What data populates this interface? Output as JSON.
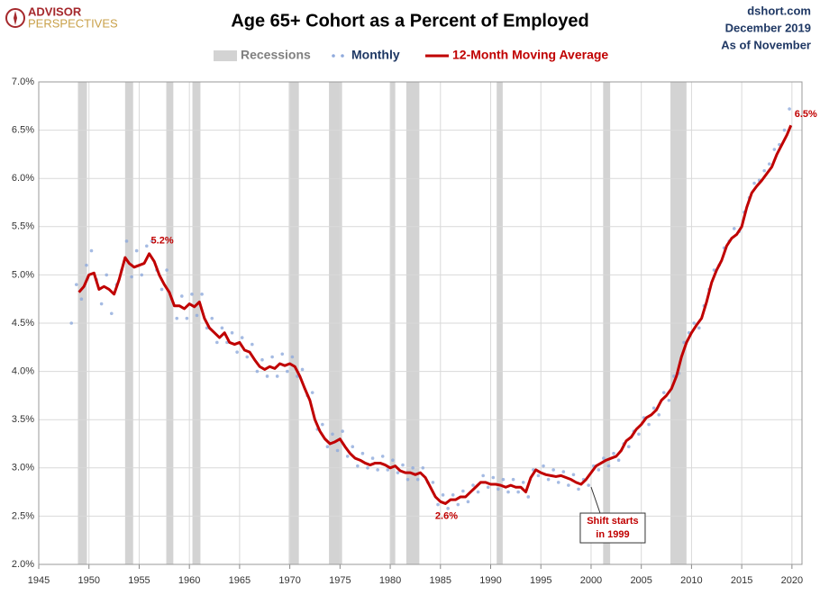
{
  "header": {
    "logo_top": "ADVISOR",
    "logo_bottom": "PERSPECTIVES",
    "source": "dshort.com",
    "date": "December 2019",
    "note": "As of November"
  },
  "chart_data": {
    "type": "line",
    "title": "Age 65+ Cohort as a Percent of Employed",
    "xlim": [
      1945,
      2021
    ],
    "xticks": [
      1945,
      1950,
      1955,
      1960,
      1965,
      1970,
      1975,
      1980,
      1985,
      1990,
      1995,
      2000,
      2005,
      2010,
      2015,
      2020
    ],
    "ylim": [
      2,
      7
    ],
    "yticks": [
      {
        "value": 2,
        "label": "2.0%"
      },
      {
        "value": 2.5,
        "label": "2.5%"
      },
      {
        "value": 3,
        "label": "3.0%"
      },
      {
        "value": 3.5,
        "label": "3.5%"
      },
      {
        "value": 4,
        "label": "4.0%"
      },
      {
        "value": 4.5,
        "label": "4.5%"
      },
      {
        "value": 5,
        "label": "5.0%"
      },
      {
        "value": 5.5,
        "label": "5.5%"
      },
      {
        "value": 6,
        "label": "6.0%"
      },
      {
        "value": 6.5,
        "label": "6.5%"
      },
      {
        "value": 7,
        "label": "7.0%"
      }
    ],
    "grid": true,
    "recessions": {
      "name": "Recessions",
      "color": "#d3d3d3",
      "spans": [
        [
          1948.9,
          1949.8
        ],
        [
          1953.6,
          1954.4
        ],
        [
          1957.7,
          1958.4
        ],
        [
          1960.3,
          1961.1
        ],
        [
          1969.9,
          1970.9
        ],
        [
          1973.9,
          1975.2
        ],
        [
          1980.0,
          1980.5
        ],
        [
          1981.6,
          1982.9
        ],
        [
          1990.6,
          1991.2
        ],
        [
          2001.2,
          2001.9
        ],
        [
          2007.9,
          2009.5
        ]
      ]
    },
    "series": [
      {
        "name": "Monthly",
        "type": "scatter",
        "color": "#8faadc",
        "x": [
          1948.25,
          1948.75,
          1949.25,
          1949.75,
          1950.25,
          1950.75,
          1951.25,
          1951.75,
          1952.25,
          1952.75,
          1953.25,
          1953.75,
          1954.25,
          1954.75,
          1955.25,
          1955.75,
          1956.25,
          1956.75,
          1957.25,
          1957.75,
          1958.25,
          1958.75,
          1959.25,
          1959.75,
          1960.25,
          1960.75,
          1961.25,
          1961.75,
          1962.25,
          1962.75,
          1963.25,
          1963.75,
          1964.25,
          1964.75,
          1965.25,
          1965.75,
          1966.25,
          1966.75,
          1967.25,
          1967.75,
          1968.25,
          1968.75,
          1969.25,
          1969.75,
          1970.25,
          1970.75,
          1971.25,
          1971.75,
          1972.25,
          1972.75,
          1973.25,
          1973.75,
          1974.25,
          1974.75,
          1975.25,
          1975.75,
          1976.25,
          1976.75,
          1977.25,
          1977.75,
          1978.25,
          1978.75,
          1979.25,
          1979.75,
          1980.25,
          1980.75,
          1981.25,
          1981.75,
          1982.25,
          1982.75,
          1983.25,
          1983.75,
          1984.25,
          1984.75,
          1985.25,
          1985.75,
          1986.25,
          1986.75,
          1987.25,
          1987.75,
          1988.25,
          1988.75,
          1989.25,
          1989.75,
          1990.25,
          1990.75,
          1991.25,
          1991.75,
          1992.25,
          1992.75,
          1993.25,
          1993.75,
          1994.25,
          1994.75,
          1995.25,
          1995.75,
          1996.25,
          1996.75,
          1997.25,
          1997.75,
          1998.25,
          1998.75,
          1999.25,
          1999.75,
          2000.25,
          2000.75,
          2001.25,
          2001.75,
          2002.25,
          2002.75,
          2003.25,
          2003.75,
          2004.25,
          2004.75,
          2005.25,
          2005.75,
          2006.25,
          2006.75,
          2007.25,
          2007.75,
          2008.25,
          2008.75,
          2009.25,
          2009.75,
          2010.25,
          2010.75,
          2011.25,
          2011.75,
          2012.25,
          2012.75,
          2013.25,
          2013.75,
          2014.25,
          2014.75,
          2015.25,
          2015.75,
          2016.25,
          2016.75,
          2017.25,
          2017.75,
          2018.25,
          2018.75,
          2019.25,
          2019.75
        ],
        "values": [
          4.5,
          4.9,
          4.75,
          5.1,
          5.25,
          4.95,
          4.7,
          5.0,
          4.6,
          4.9,
          5.05,
          5.35,
          4.98,
          5.25,
          5.0,
          5.3,
          5.35,
          5.05,
          4.85,
          5.05,
          4.75,
          4.55,
          4.78,
          4.55,
          4.8,
          4.58,
          4.8,
          4.45,
          4.55,
          4.3,
          4.45,
          4.3,
          4.4,
          4.2,
          4.35,
          4.15,
          4.28,
          4.0,
          4.12,
          3.95,
          4.15,
          3.95,
          4.18,
          4.0,
          4.15,
          3.95,
          4.02,
          3.75,
          3.78,
          3.4,
          3.45,
          3.22,
          3.35,
          3.18,
          3.38,
          3.12,
          3.22,
          3.02,
          3.15,
          3.0,
          3.1,
          2.98,
          3.12,
          2.98,
          3.08,
          2.95,
          3.03,
          2.88,
          3.0,
          2.88,
          3.0,
          2.85,
          2.85,
          2.62,
          2.72,
          2.58,
          2.72,
          2.62,
          2.76,
          2.65,
          2.82,
          2.75,
          2.92,
          2.8,
          2.9,
          2.78,
          2.88,
          2.75,
          2.88,
          2.75,
          2.85,
          2.7,
          2.98,
          2.92,
          3.02,
          2.88,
          2.98,
          2.85,
          2.96,
          2.82,
          2.93,
          2.78,
          2.88,
          2.82,
          3.02,
          2.98,
          3.1,
          3.02,
          3.15,
          3.08,
          3.25,
          3.22,
          3.38,
          3.35,
          3.52,
          3.45,
          3.62,
          3.55,
          3.78,
          3.7,
          3.95,
          3.98,
          4.3,
          4.4,
          4.5,
          4.45,
          4.68,
          4.85,
          5.05,
          5.1,
          5.28,
          5.35,
          5.48,
          5.45,
          5.65,
          5.8,
          5.95,
          5.98,
          6.08,
          6.15,
          6.3,
          6.35,
          6.5,
          6.72
        ]
      },
      {
        "name": "12-Month Moving Average",
        "type": "line",
        "color": "#c00000",
        "x": [
          1949.0,
          1949.5,
          1950.0,
          1950.5,
          1951.0,
          1951.5,
          1952.0,
          1952.5,
          1953.0,
          1953.6,
          1954.0,
          1954.5,
          1955.0,
          1955.5,
          1956.0,
          1956.5,
          1957.0,
          1957.5,
          1958.0,
          1958.5,
          1959.0,
          1959.5,
          1960.0,
          1960.5,
          1961.0,
          1961.5,
          1962.0,
          1962.5,
          1963.0,
          1963.5,
          1964.0,
          1964.5,
          1965.0,
          1965.5,
          1966.0,
          1966.5,
          1967.0,
          1967.5,
          1968.0,
          1968.5,
          1969.0,
          1969.5,
          1970.0,
          1970.5,
          1971.0,
          1971.5,
          1972.0,
          1972.5,
          1973.0,
          1973.5,
          1974.0,
          1974.5,
          1975.0,
          1975.5,
          1976.0,
          1976.5,
          1977.0,
          1977.5,
          1978.0,
          1978.5,
          1979.0,
          1979.5,
          1980.0,
          1980.5,
          1981.0,
          1981.5,
          1982.0,
          1982.5,
          1983.0,
          1983.5,
          1984.0,
          1984.5,
          1985.0,
          1985.5,
          1986.0,
          1986.5,
          1987.0,
          1987.5,
          1988.0,
          1988.5,
          1989.0,
          1989.5,
          1990.0,
          1990.5,
          1991.0,
          1991.5,
          1992.0,
          1992.5,
          1993.0,
          1993.5,
          1994.0,
          1994.5,
          1995.0,
          1995.5,
          1996.0,
          1996.5,
          1997.0,
          1997.5,
          1998.0,
          1998.5,
          1999.0,
          1999.5,
          2000.0,
          2000.5,
          2001.0,
          2001.5,
          2002.0,
          2002.5,
          2003.0,
          2003.5,
          2004.0,
          2004.5,
          2005.0,
          2005.5,
          2006.0,
          2006.5,
          2007.0,
          2007.5,
          2008.0,
          2008.5,
          2009.0,
          2009.5,
          2010.0,
          2010.5,
          2011.0,
          2011.5,
          2012.0,
          2012.5,
          2013.0,
          2013.5,
          2014.0,
          2014.5,
          2015.0,
          2015.5,
          2016.0,
          2016.5,
          2017.0,
          2017.5,
          2018.0,
          2018.5,
          2019.0,
          2019.5,
          2019.9
        ],
        "values": [
          4.82,
          4.88,
          5.0,
          5.02,
          4.85,
          4.88,
          4.85,
          4.8,
          4.95,
          5.18,
          5.12,
          5.08,
          5.1,
          5.12,
          5.22,
          5.14,
          5.0,
          4.9,
          4.82,
          4.68,
          4.68,
          4.65,
          4.7,
          4.67,
          4.72,
          4.55,
          4.45,
          4.4,
          4.35,
          4.4,
          4.3,
          4.28,
          4.3,
          4.22,
          4.2,
          4.12,
          4.05,
          4.02,
          4.05,
          4.03,
          4.08,
          4.06,
          4.08,
          4.05,
          3.95,
          3.82,
          3.7,
          3.5,
          3.38,
          3.3,
          3.25,
          3.27,
          3.3,
          3.22,
          3.15,
          3.1,
          3.08,
          3.05,
          3.03,
          3.05,
          3.05,
          3.03,
          3.0,
          3.02,
          2.97,
          2.95,
          2.95,
          2.93,
          2.95,
          2.9,
          2.8,
          2.7,
          2.65,
          2.63,
          2.67,
          2.67,
          2.7,
          2.7,
          2.75,
          2.8,
          2.85,
          2.85,
          2.83,
          2.83,
          2.82,
          2.8,
          2.82,
          2.8,
          2.8,
          2.75,
          2.9,
          2.98,
          2.95,
          2.93,
          2.92,
          2.91,
          2.92,
          2.9,
          2.88,
          2.85,
          2.83,
          2.88,
          2.95,
          3.02,
          3.05,
          3.08,
          3.1,
          3.12,
          3.18,
          3.28,
          3.32,
          3.4,
          3.45,
          3.52,
          3.55,
          3.6,
          3.7,
          3.75,
          3.82,
          3.95,
          4.15,
          4.3,
          4.4,
          4.48,
          4.55,
          4.72,
          4.92,
          5.05,
          5.15,
          5.3,
          5.38,
          5.42,
          5.5,
          5.7,
          5.85,
          5.92,
          5.98,
          6.05,
          6.12,
          6.25,
          6.35,
          6.45,
          6.55
        ]
      }
    ],
    "annotations": [
      {
        "text": "5.2%",
        "x": 1957.3,
        "y": 5.22,
        "position": "above",
        "color": "#c00000"
      },
      {
        "text": "2.6%",
        "x": 1985.6,
        "y": 2.63,
        "position": "below",
        "color": "#c00000"
      },
      {
        "text": "6.5%",
        "x": 2019.9,
        "y": 6.55,
        "position": "right",
        "color": "#c00000"
      },
      {
        "lines": [
          "Shift starts",
          "in 1999"
        ],
        "x": 2000.0,
        "y": 2.83,
        "position": "callout",
        "color": "#c00000"
      }
    ]
  }
}
